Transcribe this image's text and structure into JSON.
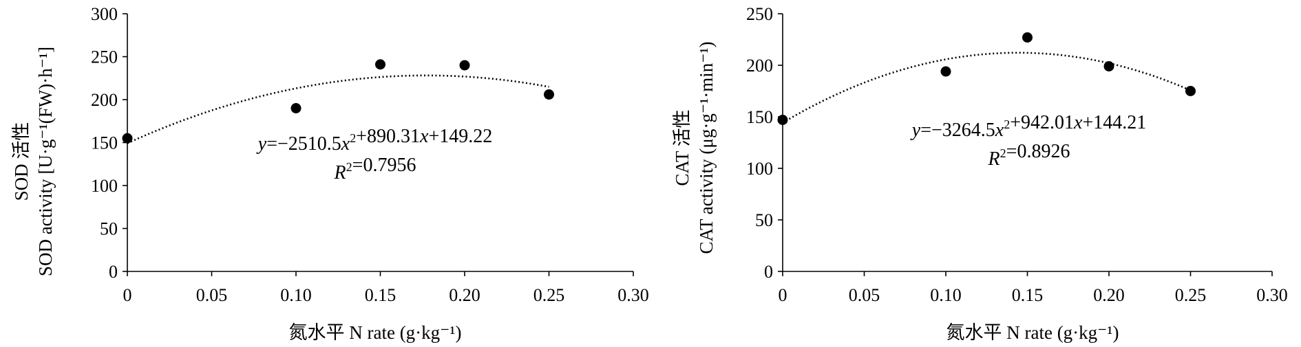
{
  "chart_data": [
    {
      "type": "scatter",
      "xlabel": "氮水平 N rate (g·kg⁻¹)",
      "ylabel_line1": "SOD 活性",
      "ylabel_line2": "SOD activity [U·g⁻¹(FW)·h⁻¹]",
      "xlim": [
        0,
        0.3
      ],
      "ylim": [
        0,
        300
      ],
      "x_ticks": [
        "0",
        "0.05",
        "0.10",
        "0.15",
        "0.20",
        "0.25",
        "0.30"
      ],
      "y_ticks": [
        "0",
        "50",
        "100",
        "150",
        "200",
        "250",
        "300"
      ],
      "points": [
        {
          "x": 0,
          "y": 155
        },
        {
          "x": 0.1,
          "y": 190
        },
        {
          "x": 0.15,
          "y": 241
        },
        {
          "x": 0.2,
          "y": 240
        },
        {
          "x": 0.25,
          "y": 206
        }
      ],
      "trendline": {
        "a": -2510.5,
        "b": 890.31,
        "c": 149.22,
        "x_range": [
          0,
          0.25
        ],
        "style": "dotted"
      },
      "equation": "y=−2510.5x²+890.31x+149.22",
      "r2": "R²=0.7956"
    },
    {
      "type": "scatter",
      "xlabel": "氮水平 N rate (g·kg⁻¹)",
      "ylabel_line1": "CAT 活性",
      "ylabel_line2": "CAT activity (μg·g⁻¹·min⁻¹)",
      "xlim": [
        0,
        0.3
      ],
      "ylim": [
        0,
        250
      ],
      "x_ticks": [
        "0",
        "0.05",
        "0.10",
        "0.15",
        "0.20",
        "0.25",
        "0.30"
      ],
      "y_ticks": [
        "0",
        "50",
        "100",
        "150",
        "200",
        "250"
      ],
      "points": [
        {
          "x": 0,
          "y": 147
        },
        {
          "x": 0.1,
          "y": 194
        },
        {
          "x": 0.15,
          "y": 227
        },
        {
          "x": 0.2,
          "y": 199
        },
        {
          "x": 0.25,
          "y": 175
        }
      ],
      "trendline": {
        "a": -3264.5,
        "b": 942.01,
        "c": 144.21,
        "x_range": [
          0,
          0.25
        ],
        "style": "dotted"
      },
      "equation": "y=−3264.5x²+942.01x+144.21",
      "r2": "R²=0.8926"
    }
  ]
}
